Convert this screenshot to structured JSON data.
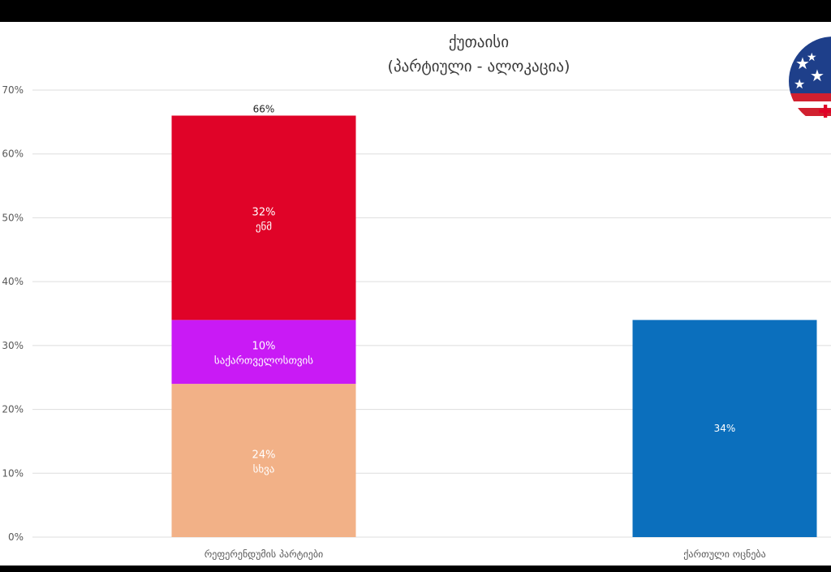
{
  "chart_data": {
    "type": "bar",
    "title": "ქუთაისი",
    "subtitle": "(პარტიული - ალოკაცია)",
    "ylim": [
      0,
      70
    ],
    "yticks": [
      0,
      10,
      20,
      30,
      40,
      50,
      60,
      70
    ],
    "ytick_labels": [
      "0%",
      "10%",
      "20%",
      "30%",
      "40%",
      "50%",
      "60%",
      "70%"
    ],
    "grid": true,
    "categories": [
      "რეფერენდუმის პარტიები",
      "ქართული ოცნება"
    ],
    "stacks": [
      {
        "category": "რეფერენდუმის პარტიები",
        "total_label": "66%",
        "segments": [
          {
            "value": 24,
            "label": "24%",
            "name": "სხვა",
            "color": "#f2b187"
          },
          {
            "value": 10,
            "label": "10%",
            "name": "საქართველოსთვის",
            "color": "#c91af5"
          },
          {
            "value": 32,
            "label": "32%",
            "name": "ენმ",
            "color": "#e00328"
          }
        ]
      },
      {
        "category": "ქართული ოცნება",
        "total_label": "",
        "segments": [
          {
            "value": 34,
            "label": "34%",
            "name": "",
            "color": "#0b6fbd"
          }
        ]
      }
    ]
  },
  "colors": {
    "grid": "#dddddd",
    "axis_text": "#595959",
    "background": "#ffffff",
    "frame": "#000000"
  }
}
